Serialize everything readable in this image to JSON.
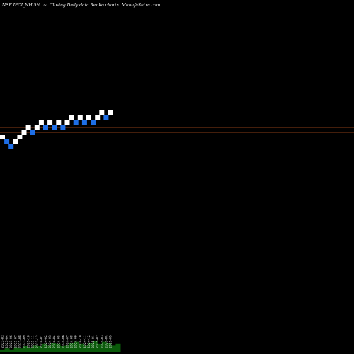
{
  "header": {
    "symbol": "NSE IFCI_NH 5%",
    "separator": "~",
    "caption": "Closing Daily data  Renko  charts",
    "site": "MunafaSutra.com"
  },
  "chart_data": {
    "type": "renko",
    "title": "NSE IFCI_NH 5% ~ Closing Daily data Renko charts MunafaSutra.com",
    "colors": {
      "up": "#ffffff",
      "down": "#1e6ee6",
      "line": "#b4501e",
      "volume": "#0a5a0a",
      "background": "#000000"
    },
    "reference_lines": [
      {
        "name": "upper-line",
        "value": 40
      },
      {
        "name": "lower-line",
        "value": 33
      }
    ],
    "brick_size": 7,
    "bricks": [
      {
        "dir": "up",
        "level": 23
      },
      {
        "dir": "down",
        "level": 16
      },
      {
        "dir": "down",
        "level": 9
      },
      {
        "dir": "up",
        "level": 16
      },
      {
        "dir": "up",
        "level": 23
      },
      {
        "dir": "up",
        "level": 30
      },
      {
        "dir": "up",
        "level": 37
      },
      {
        "dir": "down",
        "level": 30
      },
      {
        "dir": "up",
        "level": 37
      },
      {
        "dir": "up",
        "level": 44
      },
      {
        "dir": "down",
        "level": 37
      },
      {
        "dir": "up",
        "level": 44
      },
      {
        "dir": "down",
        "level": 37
      },
      {
        "dir": "up",
        "level": 44
      },
      {
        "dir": "down",
        "level": 37
      },
      {
        "dir": "up",
        "level": 44
      },
      {
        "dir": "up",
        "level": 51
      },
      {
        "dir": "down",
        "level": 44
      },
      {
        "dir": "up",
        "level": 51
      },
      {
        "dir": "down",
        "level": 44
      },
      {
        "dir": "up",
        "level": 51
      },
      {
        "dir": "down",
        "level": 44
      },
      {
        "dir": "up",
        "level": 51
      },
      {
        "dir": "up",
        "level": 58
      },
      {
        "dir": "down",
        "level": 51
      },
      {
        "dir": "up",
        "level": 58
      }
    ],
    "date_labels": [
      "2023-03",
      "2023-04",
      "2023-06",
      "2023-07",
      "2023-08",
      "2023-09",
      "2023-10",
      "2023-11",
      "2023-12",
      "2024-01",
      "2024-02",
      "2024-03",
      "2024-04",
      "2024-05",
      "2024-06",
      "2024-07",
      "2024-08",
      "2024-09",
      "2024-10",
      "2024-11",
      "2024-12",
      "2025-01",
      "2025-02",
      "2025-03",
      "2025-04",
      "2025-05"
    ],
    "volume": [
      2,
      3,
      2,
      4,
      3,
      5,
      4,
      6,
      5,
      7,
      6,
      8,
      7,
      5,
      6,
      8,
      9,
      7,
      6,
      8,
      10,
      7,
      9,
      8,
      6,
      7
    ]
  }
}
